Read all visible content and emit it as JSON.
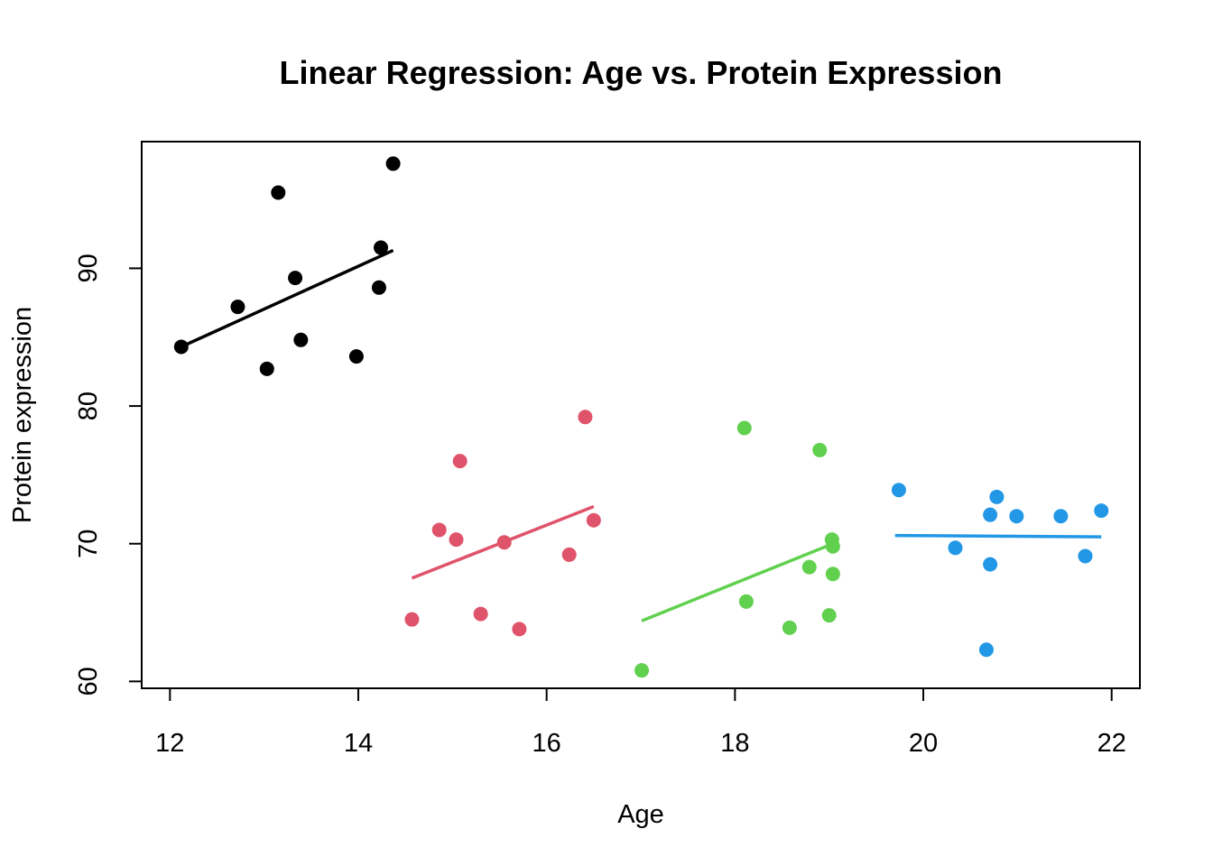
{
  "chart_data": {
    "type": "scatter",
    "title": "Linear Regression: Age vs. Protein Expression",
    "xlabel": "Age",
    "ylabel": "Protein expression",
    "xlim": [
      11.7,
      22.3
    ],
    "ylim": [
      59.5,
      99.2
    ],
    "xticks": [
      12,
      14,
      16,
      18,
      20,
      22
    ],
    "yticks": [
      60,
      70,
      80,
      90
    ],
    "grid": false,
    "legend": "none",
    "series": [
      {
        "color": "#000000",
        "points": [
          {
            "x": 12.12,
            "y": 84.3
          },
          {
            "x": 12.72,
            "y": 87.2
          },
          {
            "x": 13.03,
            "y": 82.7
          },
          {
            "x": 13.15,
            "y": 95.5
          },
          {
            "x": 13.33,
            "y": 89.3
          },
          {
            "x": 13.39,
            "y": 84.8
          },
          {
            "x": 13.98,
            "y": 83.6
          },
          {
            "x": 14.22,
            "y": 88.6
          },
          {
            "x": 14.24,
            "y": 91.5
          },
          {
            "x": 14.37,
            "y": 97.6
          }
        ],
        "fit": {
          "x": [
            12.12,
            14.37
          ],
          "y": [
            84.3,
            91.3
          ]
        }
      },
      {
        "color": "#DF536B",
        "points": [
          {
            "x": 14.57,
            "y": 64.5
          },
          {
            "x": 14.86,
            "y": 71.0
          },
          {
            "x": 15.04,
            "y": 70.3
          },
          {
            "x": 15.08,
            "y": 76.0
          },
          {
            "x": 15.3,
            "y": 64.9
          },
          {
            "x": 15.55,
            "y": 70.1
          },
          {
            "x": 15.71,
            "y": 63.8
          },
          {
            "x": 16.24,
            "y": 69.2
          },
          {
            "x": 16.41,
            "y": 79.2
          },
          {
            "x": 16.5,
            "y": 71.7
          }
        ],
        "fit": {
          "x": [
            14.57,
            16.5
          ],
          "y": [
            67.5,
            72.7
          ]
        }
      },
      {
        "color": "#61D04F",
        "points": [
          {
            "x": 17.01,
            "y": 60.8
          },
          {
            "x": 18.1,
            "y": 78.4
          },
          {
            "x": 18.12,
            "y": 65.8
          },
          {
            "x": 18.58,
            "y": 63.9
          },
          {
            "x": 18.79,
            "y": 68.3
          },
          {
            "x": 18.9,
            "y": 76.8
          },
          {
            "x": 19.0,
            "y": 64.8
          },
          {
            "x": 19.03,
            "y": 70.3
          },
          {
            "x": 19.04,
            "y": 67.8
          },
          {
            "x": 19.04,
            "y": 69.8
          }
        ],
        "fit": {
          "x": [
            17.01,
            19.04
          ],
          "y": [
            64.4,
            70.0
          ]
        }
      },
      {
        "color": "#2297E6",
        "points": [
          {
            "x": 19.74,
            "y": 73.9
          },
          {
            "x": 20.34,
            "y": 69.7
          },
          {
            "x": 20.67,
            "y": 62.3
          },
          {
            "x": 20.71,
            "y": 72.1
          },
          {
            "x": 20.71,
            "y": 68.5
          },
          {
            "x": 20.78,
            "y": 73.4
          },
          {
            "x": 20.99,
            "y": 72.0
          },
          {
            "x": 21.46,
            "y": 72.0
          },
          {
            "x": 21.72,
            "y": 69.1
          },
          {
            "x": 21.89,
            "y": 72.4
          }
        ],
        "fit": {
          "x": [
            19.7,
            21.89
          ],
          "y": [
            70.6,
            70.5
          ]
        }
      }
    ]
  }
}
